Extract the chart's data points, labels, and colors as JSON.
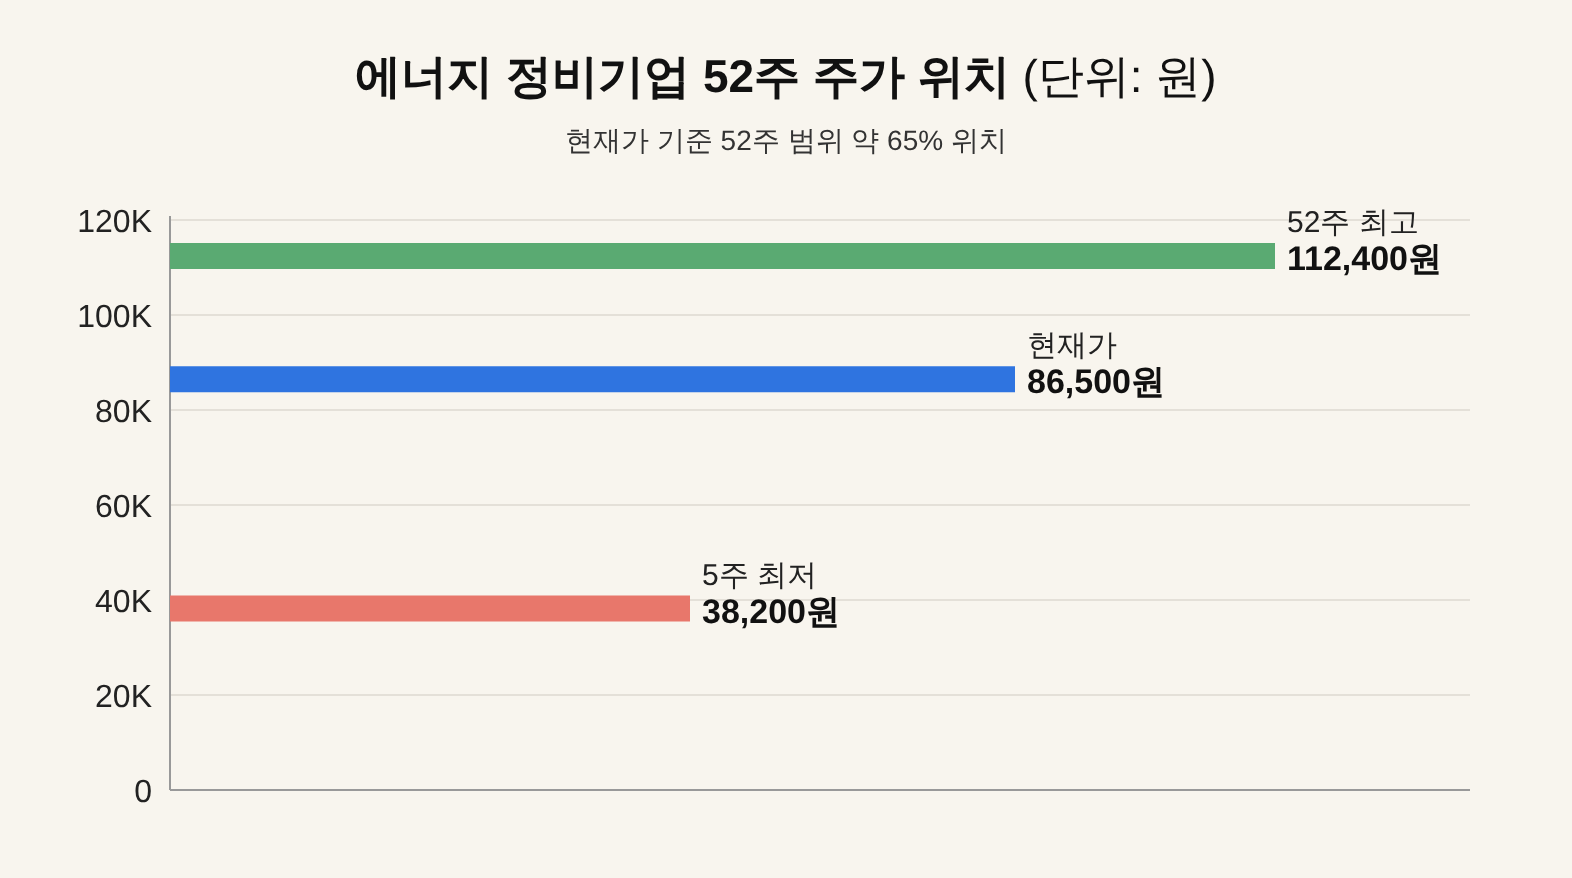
{
  "chart_data": {
    "type": "line",
    "title": "**에너지 정비기업 52주 주가 위치** (단위: 원)",
    "subtitle": "현재가 기준 52주 범위 약 65% 위치",
    "categories": [
      null,
      null,
      null,
      null,
      null,
      null,
      null,
      null,
      null,
      null,
      null,
      null,
      null,
      null,
      null,
      null,
      null,
      null,
      null,
      null,
      null
    ],
    "ylim": [
      0,
      120000
    ],
    "yticks": [
      {
        "value": 0,
        "label": "0"
      },
      {
        "value": 20000,
        "label": "20K"
      },
      {
        "value": 40000,
        "label": "40K"
      },
      {
        "value": 60000,
        "label": "60K"
      },
      {
        "value": 80000,
        "label": "80K"
      },
      {
        "value": 100000,
        "label": "100K"
      },
      {
        "value": 120000,
        "label": "120K"
      }
    ],
    "grid": "y",
    "series": [
      {
        "name": "52주 최고",
        "color": "#5aaa72",
        "values": [
          112400,
          112400,
          112400,
          112400,
          112400,
          112400,
          112400,
          112400,
          112400,
          112400,
          112400,
          112400,
          112400,
          112400,
          112400,
          112400,
          112400,
          112400,
          null,
          null,
          null
        ],
        "value_labels": [
          null,
          null,
          null,
          null,
          null,
          null,
          null,
          null,
          null,
          null,
          null,
          null,
          null,
          null,
          null,
          null,
          null,
          "112,400원",
          null,
          null,
          null
        ]
      },
      {
        "name": "현재가",
        "color": "#2f74e0",
        "values": [
          86500,
          86500,
          86500,
          86500,
          86500,
          86500,
          86500,
          86500,
          86500,
          86500,
          86500,
          86500,
          86500,
          86500,
          null,
          null,
          null,
          null,
          null,
          null,
          null
        ],
        "value_labels": [
          null,
          null,
          null,
          null,
          null,
          null,
          null,
          null,
          null,
          null,
          null,
          null,
          null,
          "86,500원",
          null,
          null,
          null,
          null,
          null,
          null,
          null
        ]
      },
      {
        "name": "5주 최저",
        "color": "#e8776b",
        "values": [
          38200,
          38200,
          38200,
          38200,
          38200,
          38200,
          38200,
          38200,
          38200,
          null,
          null,
          null,
          null,
          null,
          null,
          null,
          null,
          null,
          null,
          null,
          null
        ],
        "value_labels": [
          null,
          null,
          null,
          null,
          null,
          null,
          null,
          null,
          "38,200원",
          null,
          null,
          null,
          null,
          null,
          null,
          null,
          null,
          null,
          null,
          null,
          null
        ]
      }
    ]
  }
}
